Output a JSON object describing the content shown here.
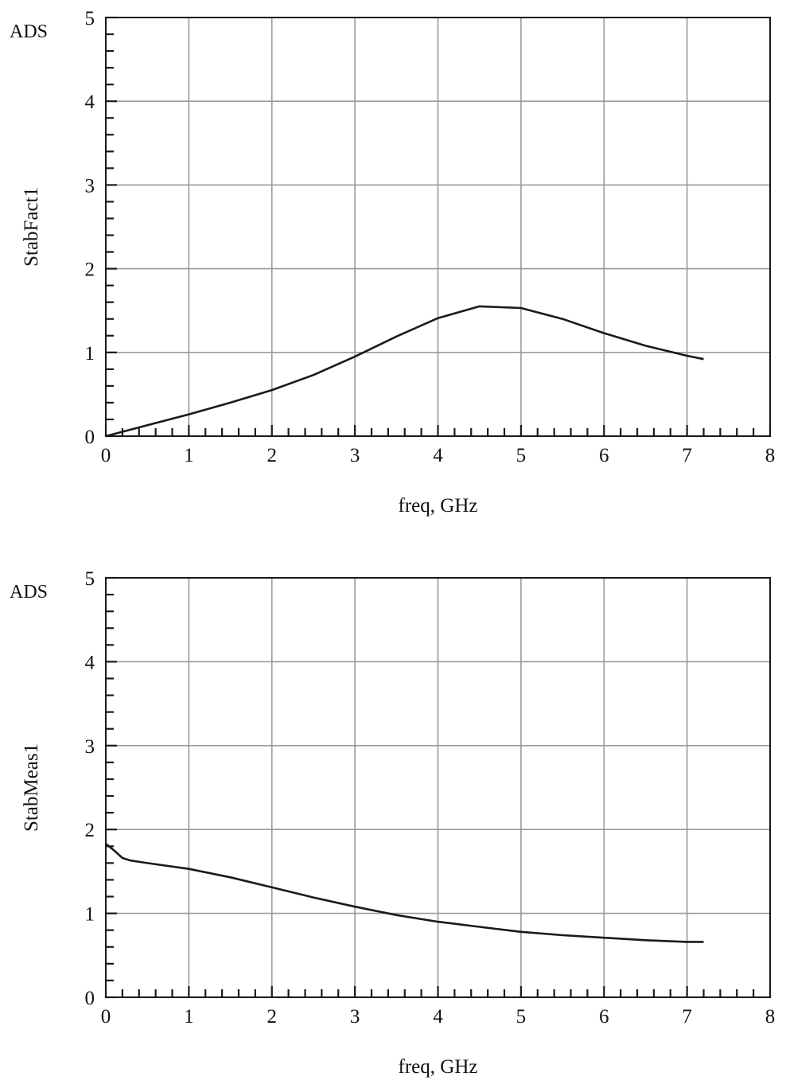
{
  "chart_data": [
    {
      "type": "line",
      "title": "",
      "watermark": "ADS",
      "xlabel": "freq, GHz",
      "ylabel": "StabFact1",
      "xlim": [
        0,
        8
      ],
      "ylim": [
        0,
        5
      ],
      "xticks": [
        "0",
        "1",
        "2",
        "3",
        "4",
        "5",
        "6",
        "7",
        "8"
      ],
      "yticks": [
        "0",
        "1",
        "2",
        "3",
        "4",
        "5"
      ],
      "grid": true,
      "line_color": "#1a1a1a",
      "grid_color": "#9a9a9a",
      "series": [
        {
          "x": [
            0,
            0.5,
            1,
            1.5,
            2,
            2.5,
            3,
            3.5,
            4,
            4.5,
            5,
            5.5,
            6,
            6.5,
            7,
            7.2
          ],
          "y": [
            0,
            0.13,
            0.26,
            0.4,
            0.55,
            0.73,
            0.95,
            1.19,
            1.41,
            1.55,
            1.53,
            1.4,
            1.23,
            1.08,
            0.96,
            0.92
          ]
        }
      ]
    },
    {
      "type": "line",
      "title": "",
      "watermark": "ADS",
      "xlabel": "freq, GHz",
      "ylabel": "StabMeas1",
      "xlim": [
        0,
        8
      ],
      "ylim": [
        0,
        5
      ],
      "xticks": [
        "0",
        "1",
        "2",
        "3",
        "4",
        "5",
        "6",
        "7",
        "8"
      ],
      "yticks": [
        "0",
        "1",
        "2",
        "3",
        "4",
        "5"
      ],
      "grid": true,
      "line_color": "#1a1a1a",
      "grid_color": "#9a9a9a",
      "series": [
        {
          "x": [
            0,
            0.1,
            0.2,
            0.3,
            0.5,
            1,
            1.5,
            2,
            2.5,
            3,
            3.5,
            4,
            4.5,
            5,
            5.5,
            6,
            6.5,
            7,
            7.2
          ],
          "y": [
            1.83,
            1.75,
            1.66,
            1.63,
            1.6,
            1.53,
            1.43,
            1.31,
            1.19,
            1.08,
            0.98,
            0.9,
            0.84,
            0.78,
            0.74,
            0.71,
            0.68,
            0.66,
            0.66
          ]
        }
      ]
    }
  ]
}
